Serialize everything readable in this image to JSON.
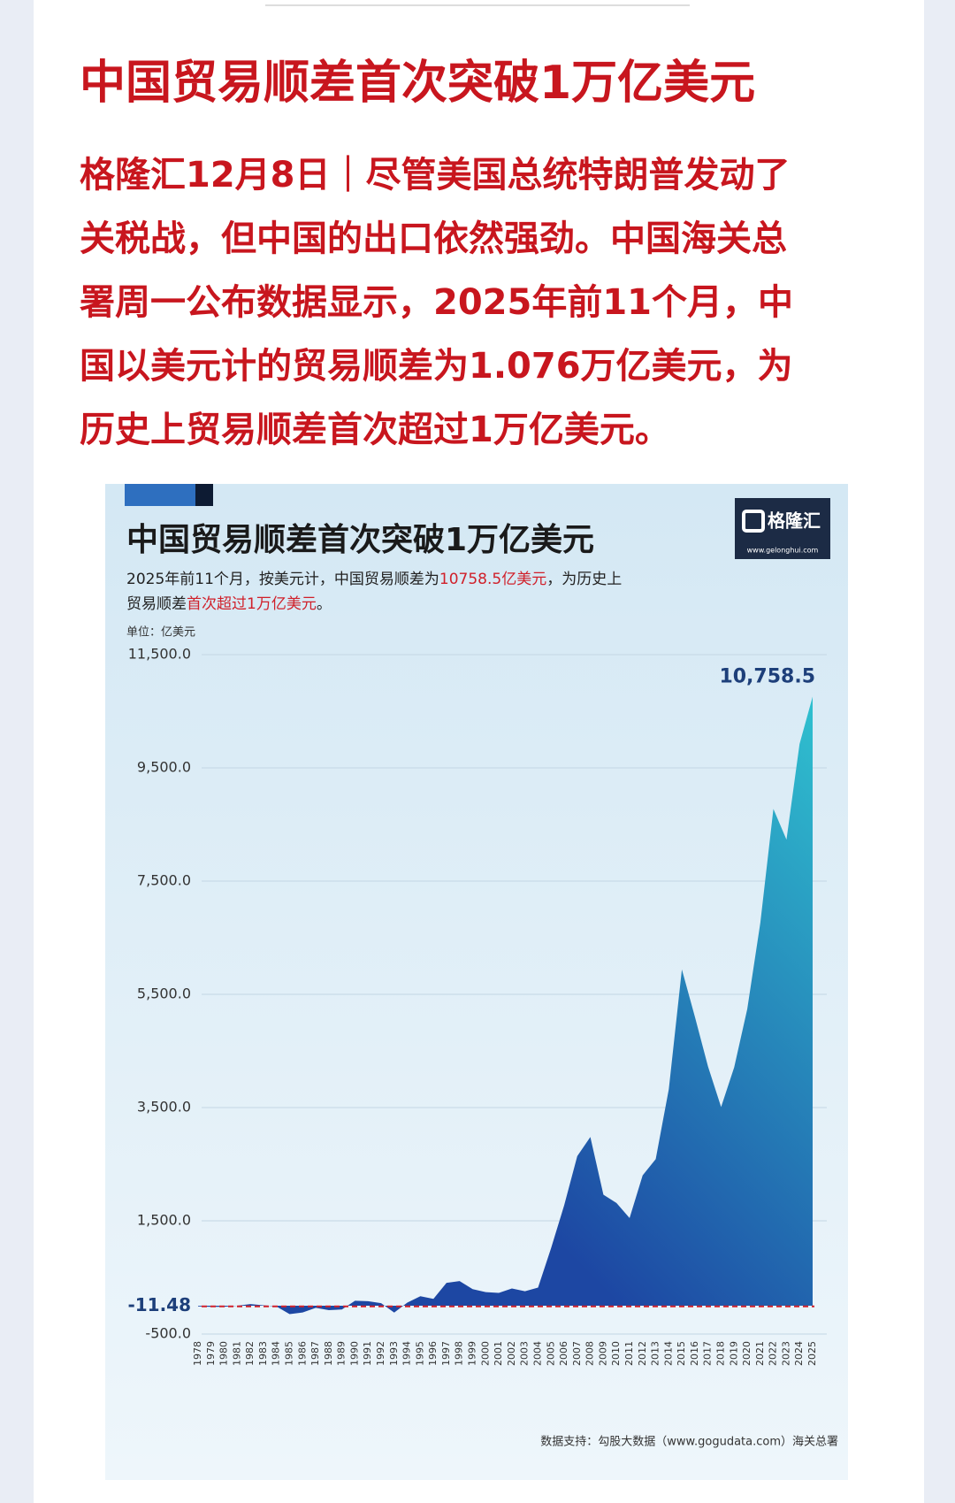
{
  "header": {
    "title": "中国贸易顺差首次突破1万亿美元",
    "body_lines": [
      "格隆汇12月8日｜尽管美国总统特朗普发动了",
      "关税战，但中国的出口依然强劲。中国海关总",
      "署周一公布数据显示，2025年前11个月，中",
      "国以美元计的贸易顺差为1.076万亿美元，为",
      "历史上贸易顺差首次超过1万亿美元。"
    ]
  },
  "chart_data": {
    "type": "area",
    "title": "中国贸易顺差首次突破1万亿美元",
    "subtitle": [
      [
        {
          "text": "2025年前11个月，按美元计，中国贸易顺差为",
          "color": "#222222"
        },
        {
          "text": "10758.5亿美元",
          "color": "#d0202a"
        },
        {
          "text": "，为历史上",
          "color": "#222222"
        }
      ],
      [
        {
          "text": "贸易顺差",
          "color": "#222222"
        },
        {
          "text": "首次超过1万亿美元",
          "color": "#d0202a"
        },
        {
          "text": "。",
          "color": "#222222"
        }
      ]
    ],
    "unit_label": "单位：亿美元",
    "logo": {
      "name": "格隆汇",
      "url": "www.gelonghui.com"
    },
    "source": "数据支持：勾股大数据（www.gogudata.com）海关总署",
    "categories": [
      "1978",
      "1979",
      "1980",
      "1981",
      "1982",
      "1983",
      "1984",
      "1985",
      "1986",
      "1987",
      "1988",
      "1989",
      "1990",
      "1991",
      "1992",
      "1993",
      "1994",
      "1995",
      "1996",
      "1997",
      "1998",
      "1999",
      "2000",
      "2001",
      "2002",
      "2003",
      "2004",
      "2005",
      "2006",
      "2007",
      "2008",
      "2009",
      "2010",
      "2011",
      "2012",
      "2013",
      "2014",
      "2015",
      "2016",
      "2017",
      "2018",
      "2019",
      "2020",
      "2021",
      "2022",
      "2023",
      "2024",
      "2025"
    ],
    "values": [
      -11.48,
      -20,
      -19,
      0,
      30,
      8,
      -13,
      -149,
      -120,
      -38,
      -78,
      -66,
      87,
      81,
      44,
      -122,
      54,
      167,
      122,
      404,
      435,
      292,
      241,
      226,
      304,
      255,
      321,
      1020,
      1775,
      2643,
      2981,
      1961,
      1815,
      1549,
      2303,
      2590,
      3825,
      5939,
      5100,
      4225,
      3509,
      4211,
      5240,
      6764,
      8776,
      8232,
      9922,
      10758.5
    ],
    "value_labels": [
      "-11.48",
      null,
      null,
      null,
      null,
      null,
      null,
      null,
      null,
      null,
      null,
      null,
      null,
      null,
      null,
      null,
      null,
      null,
      null,
      null,
      null,
      null,
      null,
      null,
      null,
      null,
      null,
      null,
      null,
      null,
      null,
      null,
      null,
      null,
      null,
      null,
      null,
      null,
      null,
      null,
      null,
      null,
      null,
      null,
      null,
      null,
      null,
      "10,758.5"
    ],
    "ylim": [
      -500,
      11500
    ],
    "yticks": [
      {
        "value": -500,
        "label": "-500.0"
      },
      {
        "value": 1500,
        "label": "1,500.0"
      },
      {
        "value": 3500,
        "label": "3,500.0"
      },
      {
        "value": 5500,
        "label": "5,500.0"
      },
      {
        "value": 7500,
        "label": "7,500.0"
      },
      {
        "value": 9500,
        "label": "9,500.0"
      },
      {
        "value": 11500,
        "label": "11,500.0"
      }
    ],
    "grid": true,
    "colors": [
      "#1d47a3",
      "#2fc0cf"
    ],
    "baseline_color": "#d0202a"
  }
}
